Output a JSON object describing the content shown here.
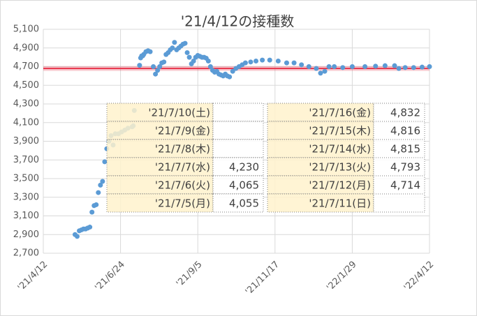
{
  "chart_data": {
    "type": "scatter",
    "title": "'21/4/12の接種数",
    "color": "#5b9bd5",
    "x": [
      "2021-05-12",
      "2021-05-14",
      "2021-05-16",
      "2021-05-18",
      "2021-05-20",
      "2021-05-22",
      "2021-05-24",
      "2021-05-26",
      "2021-05-28",
      "2021-05-30",
      "2021-06-01",
      "2021-06-03",
      "2021-06-05",
      "2021-06-07",
      "2021-06-09",
      "2021-06-11",
      "2021-06-13",
      "2021-06-15",
      "2021-06-17",
      "2021-06-19",
      "2021-06-22",
      "2021-06-25",
      "2021-06-28",
      "2021-07-01",
      "2021-07-05",
      "2021-07-06",
      "2021-07-07",
      "2021-07-12",
      "2021-07-13",
      "2021-07-14",
      "2021-07-15",
      "2021-07-16",
      "2021-07-18",
      "2021-07-20",
      "2021-07-22",
      "2021-07-25",
      "2021-07-27",
      "2021-07-29",
      "2021-07-31",
      "2021-08-02",
      "2021-08-04",
      "2021-08-06",
      "2021-08-08",
      "2021-08-10",
      "2021-08-12",
      "2021-08-14",
      "2021-08-16",
      "2021-08-18",
      "2021-08-20",
      "2021-08-22",
      "2021-08-24",
      "2021-08-26",
      "2021-08-28",
      "2021-08-30",
      "2021-09-01",
      "2021-09-03",
      "2021-09-05",
      "2021-09-07",
      "2021-09-09",
      "2021-09-11",
      "2021-09-13",
      "2021-09-15",
      "2021-09-17",
      "2021-09-19",
      "2021-09-21",
      "2021-09-23",
      "2021-09-25",
      "2021-09-27",
      "2021-09-29",
      "2021-10-01",
      "2021-10-03",
      "2021-10-05",
      "2021-10-08",
      "2021-10-11",
      "2021-10-14",
      "2021-10-17",
      "2021-10-20",
      "2021-10-25",
      "2021-10-30",
      "2021-11-05",
      "2021-11-12",
      "2021-11-20",
      "2021-11-28",
      "2021-12-05",
      "2021-12-12",
      "2021-12-19",
      "2021-12-26",
      "2021-12-30",
      "2022-01-03",
      "2022-01-07",
      "2022-01-12",
      "2022-01-20",
      "2022-01-29",
      "2022-02-10",
      "2022-02-20",
      "2022-03-01",
      "2022-03-10",
      "2022-03-14",
      "2022-03-20",
      "2022-03-28",
      "2022-04-05",
      "2022-04-12"
    ],
    "values": [
      2900,
      2880,
      2940,
      2950,
      2960,
      2960,
      2970,
      2980,
      3140,
      3210,
      3220,
      3350,
      3430,
      3470,
      3680,
      3820,
      3900,
      3960,
      3860,
      3980,
      3980,
      4000,
      4020,
      4040,
      4055,
      4065,
      4230,
      4714,
      4793,
      4815,
      4816,
      4832,
      4860,
      4870,
      4860,
      4700,
      4620,
      4660,
      4700,
      4740,
      4750,
      4830,
      4850,
      4880,
      4900,
      4960,
      4880,
      4900,
      4920,
      4940,
      4950,
      4850,
      4800,
      4730,
      4760,
      4800,
      4820,
      4810,
      4800,
      4800,
      4790,
      4760,
      4700,
      4660,
      4640,
      4650,
      4620,
      4610,
      4600,
      4620,
      4600,
      4590,
      4650,
      4680,
      4700,
      4720,
      4740,
      4750,
      4760,
      4770,
      4770,
      4760,
      4740,
      4740,
      4720,
      4700,
      4680,
      4630,
      4650,
      4700,
      4700,
      4690,
      4700,
      4700,
      4705,
      4710,
      4710,
      4680,
      4690,
      4690,
      4695,
      4700
    ],
    "xlim": [
      "2021-04-12",
      "2022-04-12"
    ],
    "xticks": [
      {
        "value": "2021-04-12",
        "label": "'21/4/12"
      },
      {
        "value": "2021-06-24",
        "label": "'21/6/24"
      },
      {
        "value": "2021-09-05",
        "label": "'21/9/5"
      },
      {
        "value": "2021-11-17",
        "label": "'21/11/17"
      },
      {
        "value": "2022-01-29",
        "label": "'22/1/29"
      },
      {
        "value": "2022-04-12",
        "label": "'22/4/12"
      }
    ],
    "ylim": [
      2700,
      5100
    ],
    "yticks": [
      {
        "value": 2700,
        "label": "2,700"
      },
      {
        "value": 2900,
        "label": "2,900"
      },
      {
        "value": 3100,
        "label": "3,100"
      },
      {
        "value": 3300,
        "label": "3,300"
      },
      {
        "value": 3500,
        "label": "3,500"
      },
      {
        "value": 3700,
        "label": "3,700"
      },
      {
        "value": 3900,
        "label": "3,900"
      },
      {
        "value": 4100,
        "label": "4,100"
      },
      {
        "value": 4300,
        "label": "4,300"
      },
      {
        "value": 4500,
        "label": "4,500"
      },
      {
        "value": 4700,
        "label": "4,700"
      },
      {
        "value": 4900,
        "label": "4,900"
      },
      {
        "value": 5100,
        "label": "5,100"
      }
    ],
    "grid": true,
    "reference_line": {
      "value": 4680,
      "color": "#e8334a"
    },
    "annotation_tables": [
      {
        "rows": [
          {
            "label": "'21/7/10(土)",
            "value": null
          },
          {
            "label": "'21/7/9(金)",
            "value": null
          },
          {
            "label": "'21/7/8(木)",
            "value": null
          },
          {
            "label": "'21/7/7(水)",
            "value": "4,230"
          },
          {
            "label": "'21/7/6(火)",
            "value": "4,065"
          },
          {
            "label": "'21/7/5(月)",
            "value": "4,055"
          }
        ]
      },
      {
        "rows": [
          {
            "label": "'21/7/16(金)",
            "value": "4,832"
          },
          {
            "label": "'21/7/15(木)",
            "value": "4,816"
          },
          {
            "label": "'21/7/14(水)",
            "value": "4,815"
          },
          {
            "label": "'21/7/13(火)",
            "value": "4,793"
          },
          {
            "label": "'21/7/12(月)",
            "value": "4,714"
          },
          {
            "label": "'21/7/11(日)",
            "value": null
          }
        ]
      }
    ]
  }
}
